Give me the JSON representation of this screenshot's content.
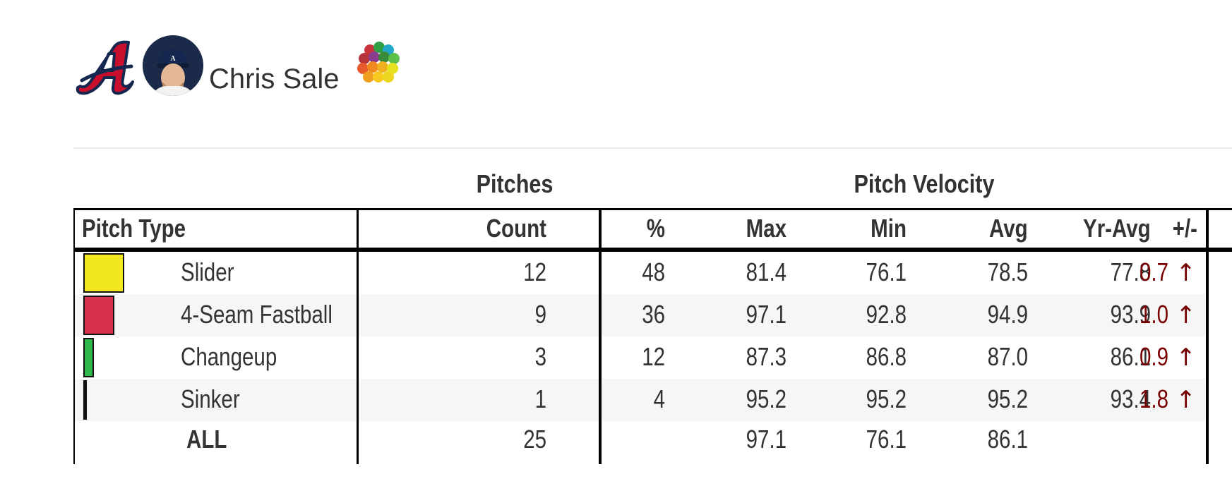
{
  "header": {
    "player_name": "Chris Sale",
    "team_logo_icon": "braves-a-logo-icon",
    "avatar": "player-headshot-avatar",
    "app_icon": "color-dots-logo-icon"
  },
  "table": {
    "spanners": {
      "pitches": "Pitches",
      "velocity": "Pitch Velocity"
    },
    "columns": {
      "pitch_type": "Pitch Type",
      "count": "Count",
      "pct": "%",
      "max": "Max",
      "min": "Min",
      "avg": "Avg",
      "yr_avg": "Yr-Avg",
      "diff": "+/-"
    },
    "rows": [
      {
        "pitch": "Slider",
        "count": "12",
        "pct": "48",
        "max": "81.4",
        "min": "76.1",
        "avg": "78.5",
        "yr_avg": "77.8",
        "diff": "0.7",
        "arrow": "↑",
        "share": 0.48,
        "color": "#f2e81f"
      },
      {
        "pitch": "4-Seam Fastball",
        "count": "9",
        "pct": "36",
        "max": "97.1",
        "min": "92.8",
        "avg": "94.9",
        "yr_avg": "93.9",
        "diff": "1.0",
        "arrow": "↑",
        "share": 0.36,
        "color": "#d6314d"
      },
      {
        "pitch": "Changeup",
        "count": "3",
        "pct": "12",
        "max": "87.3",
        "min": "86.8",
        "avg": "87.0",
        "yr_avg": "86.1",
        "diff": "0.9",
        "arrow": "↑",
        "share": 0.12,
        "color": "#2fb84b"
      },
      {
        "pitch": "Sinker",
        "count": "1",
        "pct": "4",
        "max": "95.2",
        "min": "95.2",
        "avg": "95.2",
        "yr_avg": "93.4",
        "diff": "1.8",
        "arrow": "↑",
        "share": 0.04,
        "color": "#f08a1e"
      }
    ],
    "total": {
      "label": "ALL",
      "count": "25",
      "max": "97.1",
      "min": "76.1",
      "avg": "86.1"
    },
    "delta_color": "#7a0000"
  }
}
